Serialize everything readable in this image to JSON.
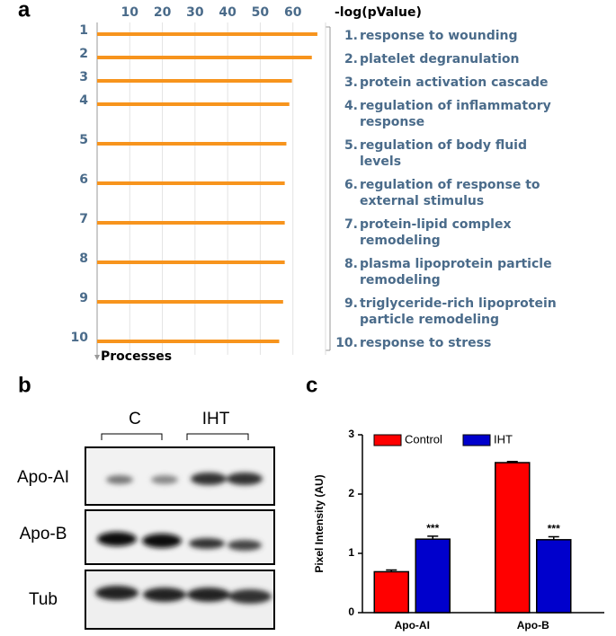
{
  "chart_data": [
    {
      "type": "hbar",
      "panel_label": "a",
      "xlabel": "-log(pValue)",
      "ylabel": "Processes",
      "categories": [
        "1",
        "2",
        "3",
        "4",
        "5",
        "6",
        "7",
        "8",
        "9",
        "10"
      ],
      "values": [
        67.5,
        65.8,
        59.7,
        58.9,
        58,
        57.5,
        57.5,
        57.5,
        57,
        55.8
      ],
      "color": "#f7941d",
      "xlim": [
        0,
        70
      ],
      "xticks": [
        10,
        20,
        30,
        40,
        50,
        60
      ],
      "grid": true,
      "processes": [
        {
          "number": "1.",
          "name": [
            "response to wounding"
          ]
        },
        {
          "number": "2.",
          "name": [
            "platelet degranulation"
          ]
        },
        {
          "number": "3.",
          "name": [
            "protein activation cascade"
          ]
        },
        {
          "number": "4.",
          "name": [
            "regulation of inflammatory",
            "response"
          ]
        },
        {
          "number": "5.",
          "name": [
            "regulation of body fluid",
            "levels"
          ]
        },
        {
          "number": "6.",
          "name": [
            "regulation of response to",
            "external stimulus"
          ]
        },
        {
          "number": "7.",
          "name": [
            "protein-lipid complex",
            "remodeling"
          ]
        },
        {
          "number": "8.",
          "name": [
            "plasma lipoprotein particle",
            "remodeling"
          ]
        },
        {
          "number": "9.",
          "name": [
            "triglyceride-rich lipoprotein",
            "particle remodeling"
          ]
        },
        {
          "number": "10.",
          "name": [
            "response to stress"
          ]
        }
      ]
    },
    {
      "type": "grouped_bar",
      "panel_label": "c",
      "ylabel": "Pixel Intensity (AU)",
      "categories": [
        "Apo-AI",
        "Apo-B"
      ],
      "series": [
        {
          "name": "Control",
          "color": "#ff0000",
          "values": [
            0.69,
            2.53
          ],
          "errors": [
            0.03,
            0.02
          ]
        },
        {
          "name": "IHT",
          "color": "#0000cc",
          "values": [
            1.24,
            1.23
          ],
          "errors": [
            0.05,
            0.05
          ],
          "annotations": [
            "***",
            "***"
          ]
        }
      ],
      "ylim": [
        0,
        3
      ],
      "yticks": [
        0,
        1,
        2,
        3
      ],
      "legend": "top"
    }
  ],
  "blot": {
    "panel_label": "b",
    "groups": [
      "C",
      "IHT"
    ],
    "rows": [
      "Apo-AI",
      "Apo-B",
      "Tub"
    ]
  }
}
